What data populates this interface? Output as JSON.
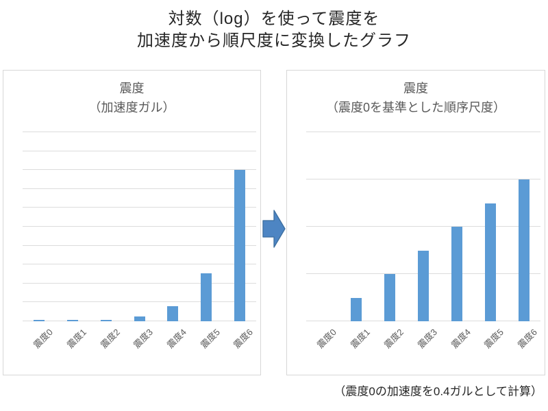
{
  "title": {
    "line1": "対数（log）を使って震度を",
    "line2": "加速度から順尺度に変換したグラフ"
  },
  "footnote": "（震度0の加速度を0.4ガルとして計算）",
  "colors": {
    "bar": "#5B9BD5",
    "arrow_fill": "#4D85C3",
    "arrow_border": "#3C6E9F",
    "gridline": "#DCDCDC",
    "panel_border": "#D7D7D7",
    "axis_text": "#595959"
  },
  "arrow": {
    "icon": "right-arrow"
  },
  "chart_data": [
    {
      "type": "bar",
      "title": "震度",
      "subtitle": "（加速度ガル）",
      "categories": [
        "震度0",
        "震度1",
        "震度2",
        "震度3",
        "震度4",
        "震度5",
        "震度6"
      ],
      "values": [
        0.4,
        1.26,
        4,
        12.6,
        40,
        126.5,
        400
      ],
      "xlabel": "",
      "ylabel": "",
      "ylim": [
        0,
        500
      ],
      "gridline_interval": 50,
      "grid": true,
      "legend": false,
      "bar_color": "#5B9BD5"
    },
    {
      "type": "bar",
      "title": "震度",
      "subtitle": "（震度0を基準とした順序尺度）",
      "categories": [
        "震度0",
        "震度1",
        "震度2",
        "震度3",
        "震度4",
        "震度5",
        "震度6"
      ],
      "values": [
        0,
        1,
        2,
        3,
        4,
        5,
        6
      ],
      "xlabel": "",
      "ylabel": "",
      "ylim": [
        0,
        8
      ],
      "gridline_interval": 2,
      "grid": true,
      "legend": false,
      "bar_color": "#5B9BD5"
    }
  ]
}
